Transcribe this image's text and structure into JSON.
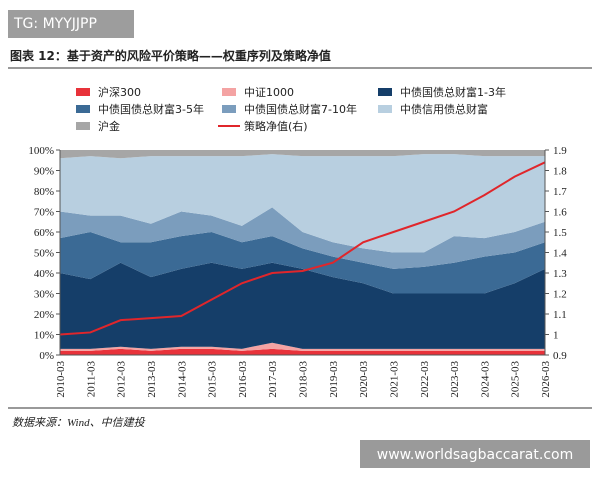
{
  "watermark": "TG: MYYJJPP",
  "site": "www.worldsagbaccarat.com",
  "source": "数据来源：Wind、中信建投",
  "chart_data": {
    "type": "stacked-area-line",
    "title": "图表 12：基于资产的风险平价策略——权重序列及策略净值",
    "categories": [
      "2010-03",
      "2011-03",
      "2012-03",
      "2013-03",
      "2014-03",
      "2015-03",
      "2016-03",
      "2017-03",
      "2018-03",
      "2019-03",
      "2020-03",
      "2021-03",
      "2022-03",
      "2023-03",
      "2024-03",
      "2025-03",
      "2026-03"
    ],
    "ylim": [
      0,
      100
    ],
    "yticks": [
      {
        "value": 0,
        "label": "0%"
      },
      {
        "value": 10,
        "label": "10%"
      },
      {
        "value": 20,
        "label": "20%"
      },
      {
        "value": 30,
        "label": "30%"
      },
      {
        "value": 40,
        "label": "40%"
      },
      {
        "value": 50,
        "label": "50%"
      },
      {
        "value": 60,
        "label": "60%"
      },
      {
        "value": 70,
        "label": "70%"
      },
      {
        "value": 80,
        "label": "80%"
      },
      {
        "value": 90,
        "label": "90%"
      },
      {
        "value": 100,
        "label": "100%"
      }
    ],
    "y2lim": [
      0.9,
      1.9
    ],
    "y2ticks": [
      0.9,
      1,
      1.1,
      1.2,
      1.3,
      1.4,
      1.5,
      1.6,
      1.7,
      1.8,
      1.9
    ],
    "series": [
      {
        "name": "沪深300",
        "color": "#e8323a",
        "values": [
          2,
          2,
          3,
          2,
          3,
          3,
          2,
          3,
          2,
          2,
          2,
          2,
          2,
          2,
          2,
          2,
          2
        ]
      },
      {
        "name": "中证1000",
        "color": "#f4a3a3",
        "values": [
          1,
          1,
          1,
          1,
          1,
          1,
          1,
          3,
          1,
          1,
          1,
          1,
          1,
          1,
          1,
          1,
          1
        ]
      },
      {
        "name": "中债国债总财富1-3年",
        "color": "#153e69",
        "values": [
          37,
          34,
          41,
          35,
          38,
          41,
          39,
          39,
          39,
          35,
          32,
          27,
          27,
          27,
          27,
          32,
          39
        ]
      },
      {
        "name": "中债国债总财富3-5年",
        "color": "#3b6a95",
        "values": [
          17,
          23,
          10,
          17,
          16,
          15,
          13,
          13,
          10,
          10,
          10,
          12,
          13,
          15,
          18,
          15,
          13
        ]
      },
      {
        "name": "中债国债总财富7-10年",
        "color": "#7b9dbd",
        "values": [
          13,
          8,
          13,
          9,
          12,
          8,
          8,
          14,
          8,
          7,
          7,
          8,
          7,
          13,
          9,
          10,
          10
        ]
      },
      {
        "name": "中债信用债总财富",
        "color": "#b8cfe0",
        "values": [
          26,
          29,
          28,
          33,
          27,
          29,
          34,
          26,
          37,
          42,
          45,
          47,
          48,
          40,
          40,
          37,
          32
        ]
      },
      {
        "name": "沪金",
        "color": "#a6a6a6",
        "values": [
          4,
          3,
          4,
          3,
          3,
          3,
          3,
          2,
          3,
          3,
          3,
          3,
          2,
          2,
          3,
          3,
          3
        ]
      },
      {
        "name": "策略净值(右)",
        "color": "#e0262b",
        "axis": "y2",
        "values": [
          1.0,
          1.01,
          1.07,
          1.08,
          1.09,
          1.17,
          1.25,
          1.3,
          1.31,
          1.35,
          1.45,
          1.5,
          1.55,
          1.6,
          1.68,
          1.77,
          1.84
        ]
      }
    ]
  }
}
